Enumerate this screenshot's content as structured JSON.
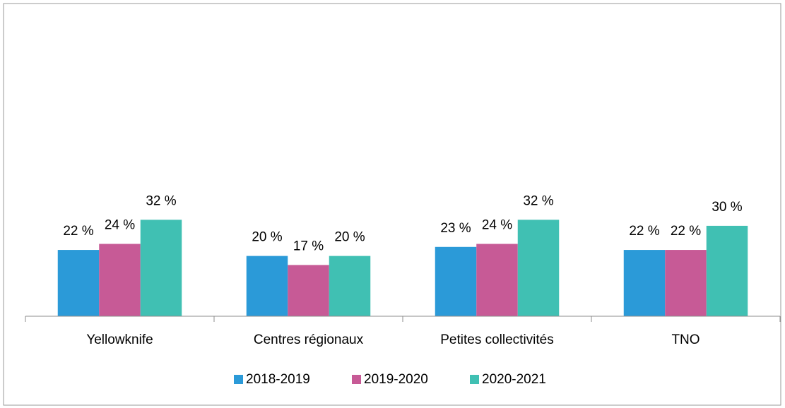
{
  "chart_data": {
    "type": "bar",
    "categories": [
      "Yellowknife",
      "Centres régionaux",
      "Petites collectivités",
      "TNO"
    ],
    "series": [
      {
        "name": "2018-2019",
        "color": "#2b9ad8",
        "values": [
          22,
          20,
          23,
          22
        ],
        "value_labels": [
          "22 %",
          "20 %",
          "23 %",
          "22 %"
        ]
      },
      {
        "name": "2019-2020",
        "color": "#c75a96",
        "values": [
          24,
          17,
          24,
          22
        ],
        "value_labels": [
          "24 %",
          "17 %",
          "24 %",
          "22 %"
        ]
      },
      {
        "name": "2020-2021",
        "color": "#40c0b3",
        "values": [
          32,
          20,
          32,
          30
        ],
        "value_labels": [
          "32 %",
          "20 %",
          "32 %",
          "30 %"
        ]
      }
    ],
    "ylim": [
      0,
      100
    ],
    "legend": "bottom"
  }
}
